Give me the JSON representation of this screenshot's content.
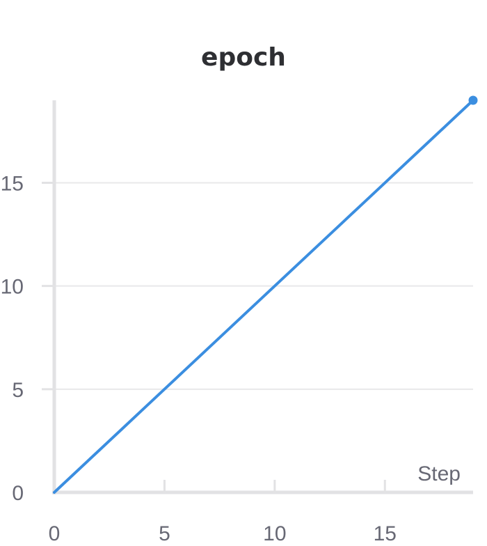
{
  "chart_data": {
    "type": "line",
    "title": "epoch",
    "xlabel": "Step",
    "ylabel": "",
    "x": [
      0,
      1,
      2,
      3,
      4,
      5,
      6,
      7,
      8,
      9,
      10,
      11,
      12,
      13,
      14,
      15,
      16,
      17,
      18,
      19
    ],
    "series": [
      {
        "name": "",
        "values": [
          0,
          1,
          2,
          3,
          4,
          5,
          6,
          7,
          8,
          9,
          10,
          11,
          12,
          13,
          14,
          15,
          16,
          17,
          18,
          19
        ],
        "color": "#3b8ee0"
      }
    ],
    "xlim": [
      0,
      19
    ],
    "ylim": [
      0,
      19
    ],
    "x_ticks": [
      0,
      5,
      10,
      15
    ],
    "y_ticks": [
      0,
      5,
      10,
      15
    ],
    "grid": "horizontal",
    "legend": "none"
  }
}
